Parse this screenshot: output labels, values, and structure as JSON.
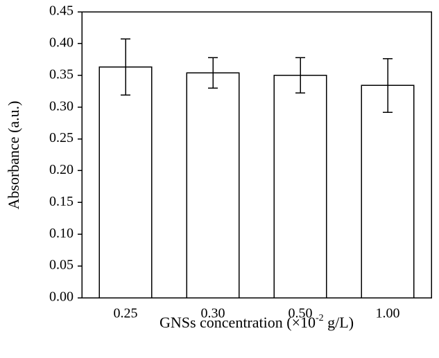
{
  "chart_data": {
    "type": "bar",
    "categories": [
      "0.25",
      "0.30",
      "0.50",
      "1.00"
    ],
    "values": [
      0.363,
      0.354,
      0.35,
      0.334
    ],
    "errors": [
      0.044,
      0.024,
      0.028,
      0.042
    ],
    "color": "#ffffff",
    "y_label": "Absorbance (a.u.)",
    "x_label_parts": [
      "GNSs concentration (×10",
      "-2",
      " g/L)"
    ],
    "ylim": [
      0,
      0.45
    ],
    "yticks": [
      {
        "value": 0,
        "label": "0.00"
      },
      0.05,
      {
        "value": 0.1,
        "label": "0.10"
      },
      0.15,
      {
        "value": 0.2,
        "label": "0.20"
      },
      0.25,
      {
        "value": 0.3,
        "label": "0.30"
      },
      0.35,
      {
        "value": 0.4,
        "label": "0.40"
      },
      0.45
    ]
  }
}
